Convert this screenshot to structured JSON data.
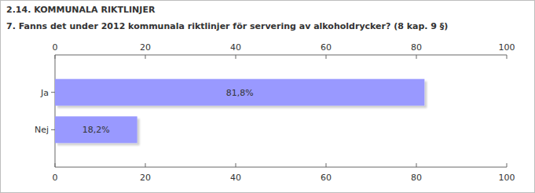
{
  "chart_data": {
    "type": "bar",
    "orientation": "horizontal",
    "title": "2.14. KOMMUNALA RIKTLINJER",
    "subtitle": "7. Fanns det under 2012 kommunala riktlinjer för servering av alkoholdrycker? (8 kap. 9 §)",
    "categories": [
      "Ja",
      "Nej"
    ],
    "values": [
      81.8,
      18.2
    ],
    "value_labels": [
      "81,8%",
      "18,2%"
    ],
    "data_labels": true,
    "color": "#9999ff",
    "xlim": [
      0,
      100
    ],
    "xticks": [
      0,
      20,
      40,
      60,
      80,
      100
    ],
    "grid": false
  }
}
